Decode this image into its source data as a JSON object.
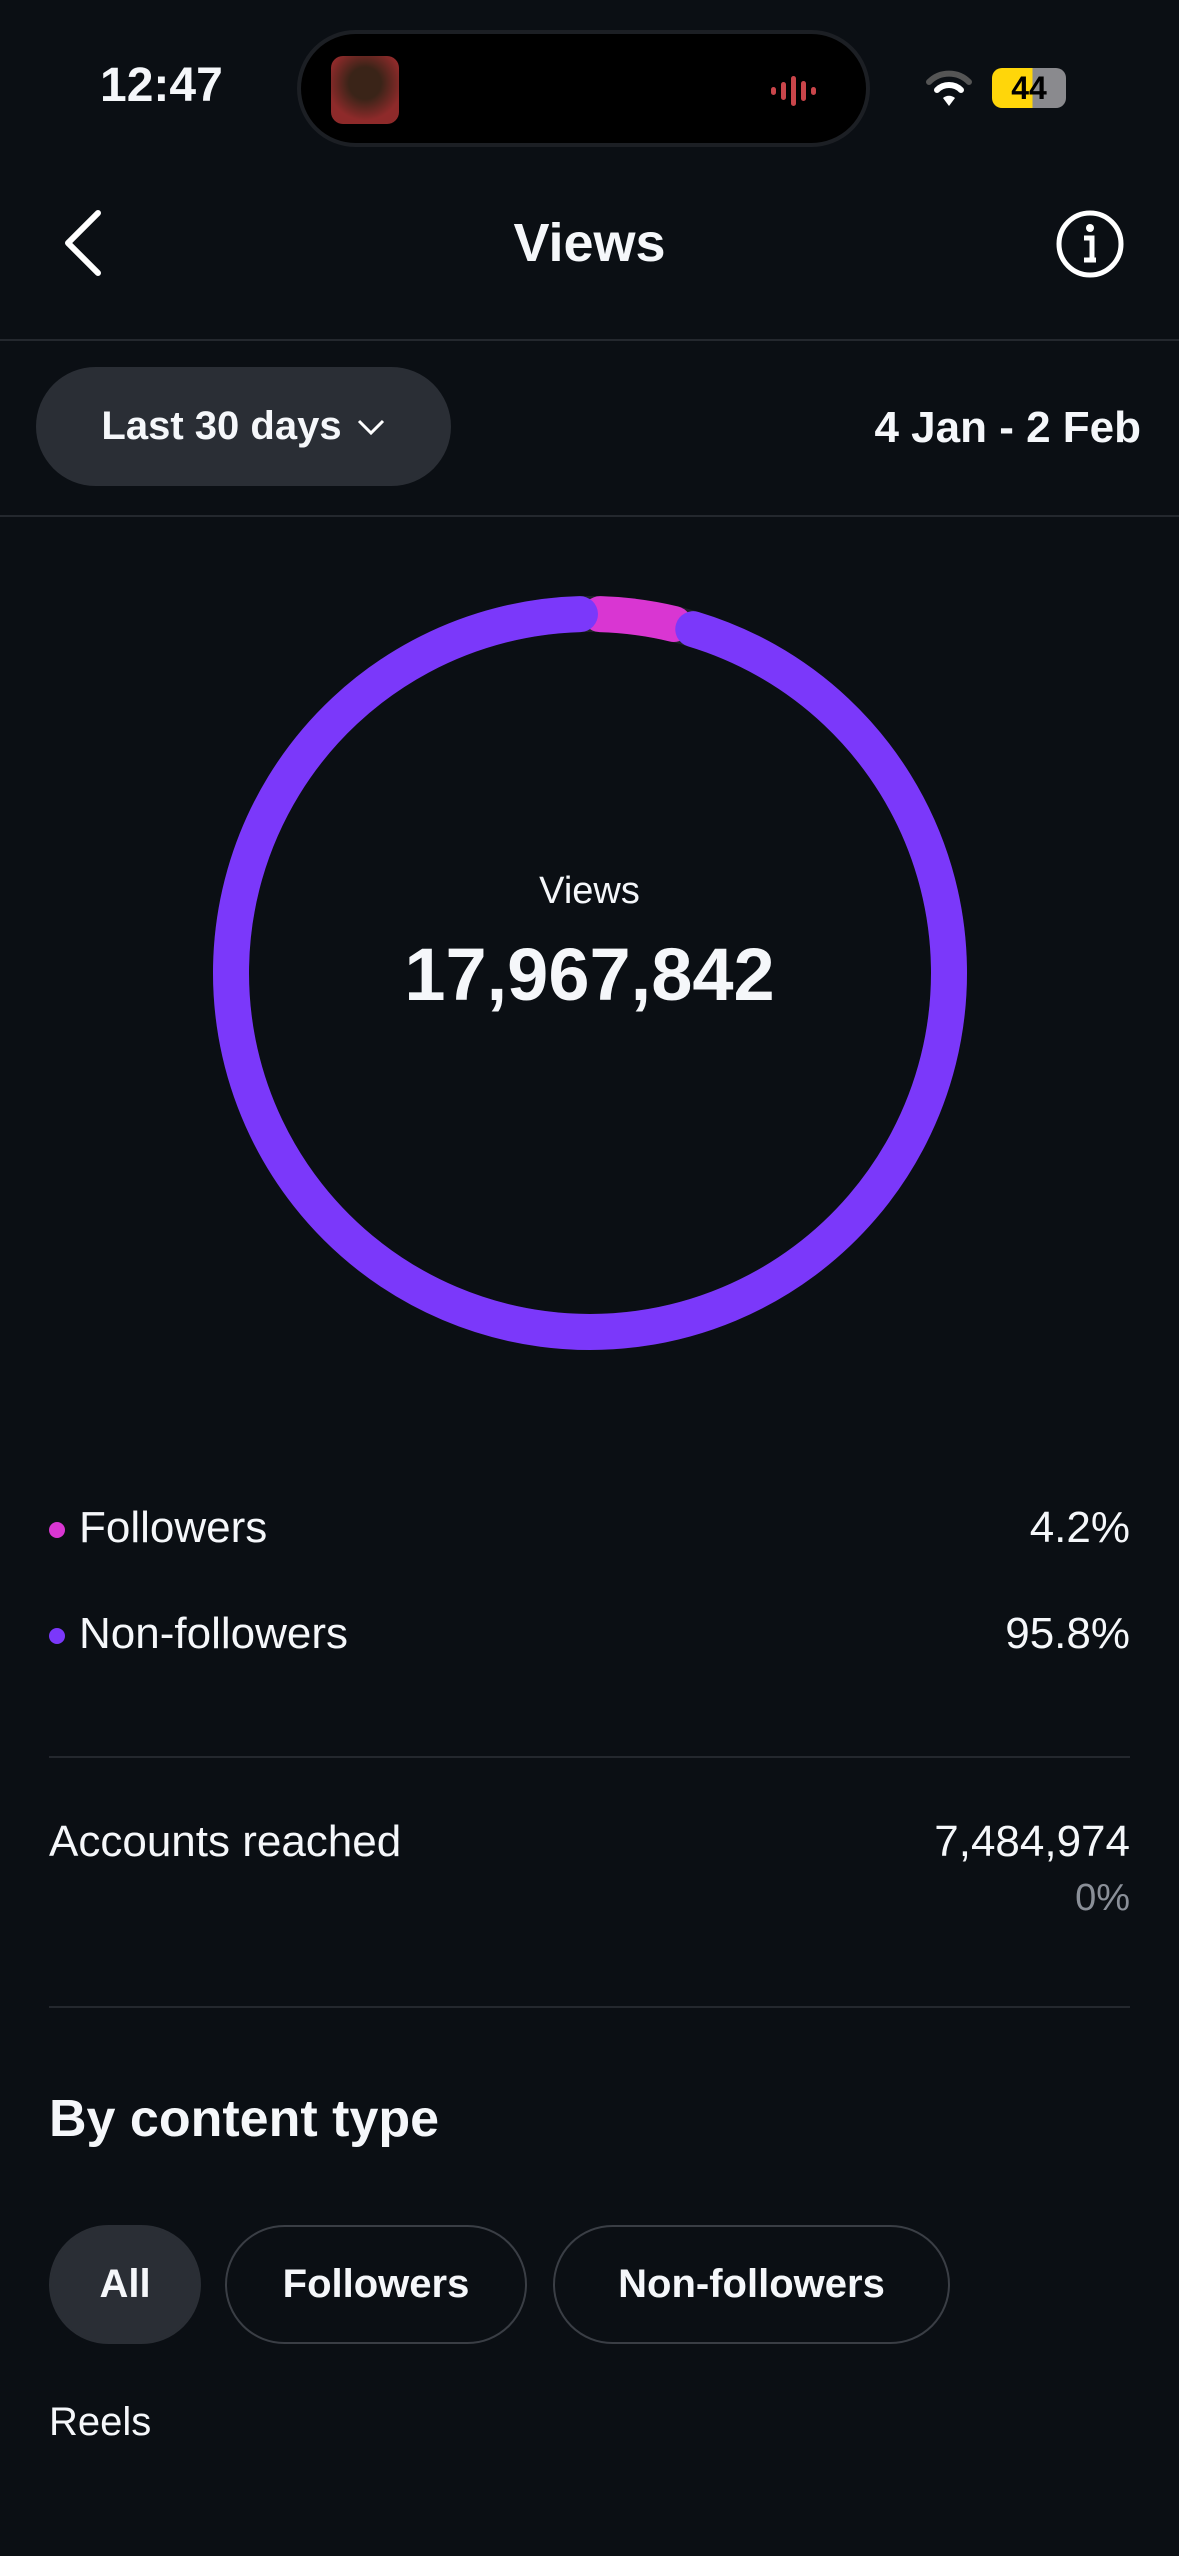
{
  "status_bar": {
    "time": "12:47",
    "battery": "44",
    "icons": [
      "wifi-icon",
      "battery-icon",
      "audio-wave-icon"
    ]
  },
  "header": {
    "title": "Views",
    "back_icon": "chevron-left-icon",
    "info_icon": "info-icon"
  },
  "filter": {
    "range_label": "Last 30 days",
    "date_range": "4 Jan - 2 Feb"
  },
  "chart_data": {
    "type": "pie",
    "style": "donut",
    "center_label": "Views",
    "center_value": "17,967,842",
    "categories": [
      "Followers",
      "Non-followers"
    ],
    "values": [
      4.2,
      95.8
    ],
    "colors": [
      "#d936d2",
      "#7b38fa"
    ]
  },
  "breakdown": [
    {
      "label": "Followers",
      "value": "4.2%",
      "color": "#d936d2"
    },
    {
      "label": "Non-followers",
      "value": "95.8%",
      "color": "#7b38fa"
    }
  ],
  "accounts_reached": {
    "label": "Accounts reached",
    "value": "7,484,974",
    "change": "0%"
  },
  "content_type": {
    "heading": "By content type",
    "tabs": [
      {
        "label": "All",
        "active": true
      },
      {
        "label": "Followers",
        "active": false
      },
      {
        "label": "Non-followers",
        "active": false
      }
    ],
    "first_item": "Reels"
  }
}
